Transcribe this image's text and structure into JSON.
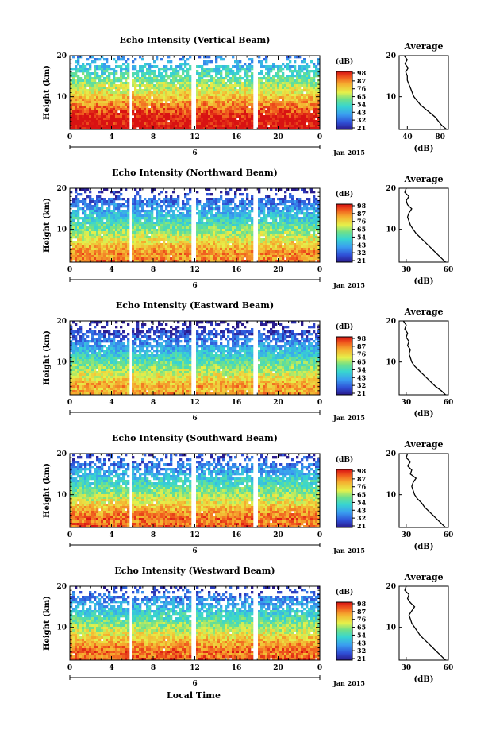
{
  "figure": {
    "footer_label": "Local Time",
    "date_label": "Jan 2015",
    "day_label": "6",
    "cbar_unit": "(dB)",
    "avg_title": "Average",
    "avg_xlabel": "(dB)",
    "ylabel": "Height (km)"
  },
  "chart_data": [
    {
      "type": "heatmap",
      "title": "Echo Intensity (Vertical Beam)",
      "xlabel": "",
      "ylabel": "Height (km)",
      "x_ticks": [
        "0",
        "4",
        "8",
        "12",
        "16",
        "20",
        "0"
      ],
      "y_ticks": [
        "10",
        "20"
      ],
      "xlim": [
        0,
        24
      ],
      "ylim": [
        2,
        20
      ],
      "colorbar": {
        "unit": "(dB)",
        "ticks": [
          "98",
          "87",
          "76",
          "65",
          "54",
          "43",
          "32",
          "21"
        ]
      },
      "gaps_hours": [
        5.8,
        11.8,
        17.8
      ],
      "average": {
        "title": "Average",
        "xlabel": "(dB)",
        "x_ticks": [
          "40",
          "80"
        ],
        "xlim": [
          30,
          90
        ],
        "heights": [
          2,
          3,
          4,
          5,
          6,
          7,
          8,
          9,
          10,
          11,
          12,
          13,
          14,
          15,
          16,
          17,
          18,
          19,
          20
        ],
        "values": [
          88,
          82,
          78,
          74,
          68,
          62,
          56,
          52,
          48,
          46,
          44,
          42,
          40,
          40,
          38,
          41,
          37,
          40,
          36
        ]
      }
    },
    {
      "type": "heatmap",
      "title": "Echo Intensity (Northward Beam)",
      "xlabel": "",
      "ylabel": "Height (km)",
      "x_ticks": [
        "0",
        "4",
        "8",
        "12",
        "16",
        "20",
        "0"
      ],
      "y_ticks": [
        "10",
        "20"
      ],
      "xlim": [
        0,
        24
      ],
      "ylim": [
        2,
        20
      ],
      "colorbar": {
        "unit": "(dB)",
        "ticks": [
          "98",
          "87",
          "76",
          "65",
          "54",
          "43",
          "32",
          "21"
        ]
      },
      "gaps_hours": [
        5.8,
        11.8,
        17.8
      ],
      "average": {
        "title": "Average",
        "xlabel": "(dB)",
        "x_ticks": [
          "30",
          "60"
        ],
        "xlim": [
          25,
          60
        ],
        "heights": [
          2,
          3,
          4,
          5,
          6,
          7,
          8,
          9,
          10,
          11,
          12,
          13,
          14,
          15,
          16,
          17,
          18,
          19,
          20
        ],
        "values": [
          58,
          55,
          52,
          49,
          46,
          43,
          40,
          37,
          35,
          33,
          32,
          31,
          32,
          34,
          31,
          30,
          32,
          29,
          30
        ]
      }
    },
    {
      "type": "heatmap",
      "title": "Echo Intensity (Eastward Beam)",
      "xlabel": "",
      "ylabel": "Height (km)",
      "x_ticks": [
        "0",
        "4",
        "8",
        "12",
        "16",
        "20",
        "0"
      ],
      "y_ticks": [
        "10",
        "20"
      ],
      "xlim": [
        0,
        24
      ],
      "ylim": [
        2,
        20
      ],
      "colorbar": {
        "unit": "(dB)",
        "ticks": [
          "98",
          "87",
          "76",
          "65",
          "54",
          "43",
          "32",
          "21"
        ]
      },
      "gaps_hours": [
        5.8,
        11.8,
        17.8
      ],
      "average": {
        "title": "Average",
        "xlabel": "(dB)",
        "x_ticks": [
          "30",
          "60"
        ],
        "xlim": [
          25,
          60
        ],
        "heights": [
          2,
          3,
          4,
          5,
          6,
          7,
          8,
          9,
          10,
          11,
          12,
          13,
          14,
          15,
          16,
          17,
          18,
          19,
          20
        ],
        "values": [
          58,
          55,
          51,
          48,
          45,
          42,
          39,
          36,
          34,
          33,
          32,
          33,
          31,
          32,
          30,
          31,
          29,
          30,
          28
        ]
      }
    },
    {
      "type": "heatmap",
      "title": "Echo Intensity (Southward Beam)",
      "xlabel": "",
      "ylabel": "Height (km)",
      "x_ticks": [
        "0",
        "4",
        "8",
        "12",
        "16",
        "20",
        "0"
      ],
      "y_ticks": [
        "10",
        "20"
      ],
      "xlim": [
        0,
        24
      ],
      "ylim": [
        2,
        20
      ],
      "colorbar": {
        "unit": "(dB)",
        "ticks": [
          "98",
          "87",
          "76",
          "65",
          "54",
          "43",
          "32",
          "21"
        ]
      },
      "gaps_hours": [
        5.8,
        11.8,
        17.8
      ],
      "average": {
        "title": "Average",
        "xlabel": "(dB)",
        "x_ticks": [
          "30",
          "60"
        ],
        "xlim": [
          25,
          60
        ],
        "heights": [
          2,
          3,
          4,
          5,
          6,
          7,
          8,
          9,
          10,
          11,
          12,
          13,
          14,
          15,
          16,
          17,
          18,
          19,
          20
        ],
        "values": [
          58,
          55,
          52,
          49,
          46,
          43,
          41,
          38,
          36,
          35,
          34,
          35,
          37,
          33,
          34,
          31,
          33,
          30,
          31
        ]
      }
    },
    {
      "type": "heatmap",
      "title": "Echo Intensity (Westward Beam)",
      "xlabel": "",
      "ylabel": "Height (km)",
      "x_ticks": [
        "0",
        "4",
        "8",
        "12",
        "16",
        "20",
        "0"
      ],
      "y_ticks": [
        "10",
        "20"
      ],
      "xlim": [
        0,
        24
      ],
      "ylim": [
        2,
        20
      ],
      "colorbar": {
        "unit": "(dB)",
        "ticks": [
          "98",
          "87",
          "76",
          "65",
          "54",
          "43",
          "32",
          "21"
        ]
      },
      "gaps_hours": [
        5.8,
        11.8,
        17.8
      ],
      "average": {
        "title": "Average",
        "xlabel": "(dB)",
        "x_ticks": [
          "30",
          "60"
        ],
        "xlim": [
          25,
          60
        ],
        "heights": [
          2,
          3,
          4,
          5,
          6,
          7,
          8,
          9,
          10,
          11,
          12,
          13,
          14,
          15,
          16,
          17,
          18,
          19,
          20
        ],
        "values": [
          58,
          55,
          52,
          49,
          46,
          43,
          40,
          38,
          36,
          34,
          33,
          32,
          34,
          36,
          33,
          31,
          32,
          29,
          30
        ]
      }
    }
  ]
}
